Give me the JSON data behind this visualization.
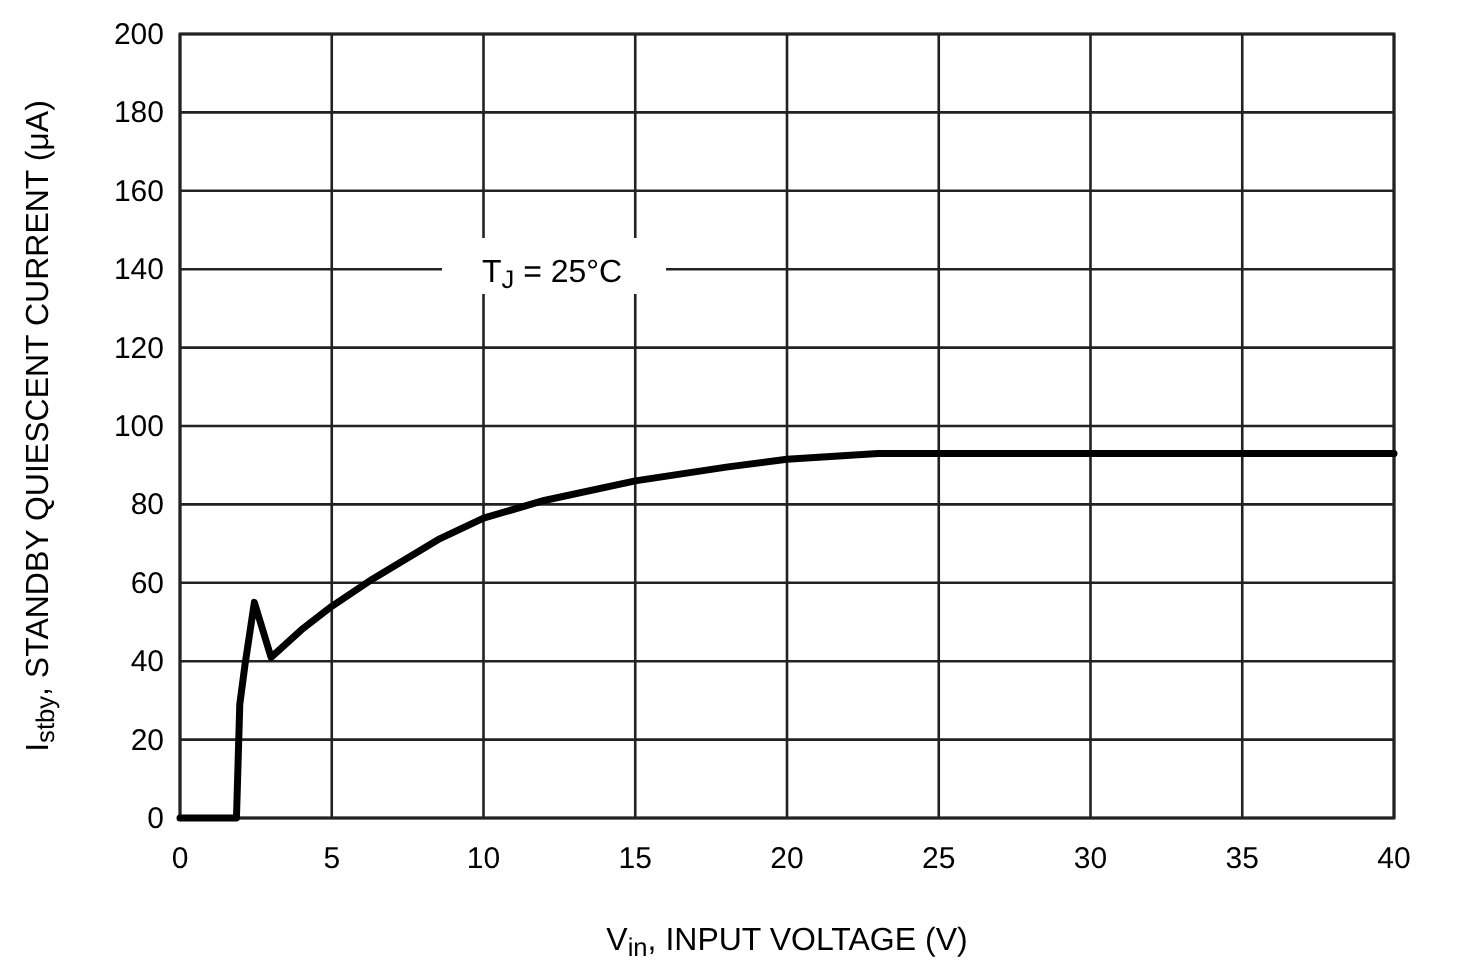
{
  "chart_data": {
    "type": "line",
    "x": [
      0,
      1.86,
      1.97,
      2.14,
      2.45,
      3.0,
      4.0,
      5.0,
      6.35,
      8.5,
      10,
      12,
      15,
      18,
      20,
      23,
      30,
      40
    ],
    "series": [
      {
        "color": "#000000",
        "values": [
          0,
          0,
          29,
          39,
          55,
          41,
          48,
          54,
          61,
          71,
          76.5,
          81,
          86,
          89.5,
          91.5,
          93,
          93,
          93
        ]
      }
    ],
    "xlabel": "V$_{in}$, INPUT VOLTAGE (V)",
    "ylabel": "I$_{stby}$, STANDBY QUIESCENT CURRENT (μA)",
    "annotations": [
      "T$_{J}$ = 25°C"
    ],
    "xlim": [
      0,
      40
    ],
    "ylim": [
      0,
      200
    ],
    "xticks": [
      0,
      5,
      10,
      15,
      20,
      25,
      30,
      35,
      40
    ],
    "yticks": [
      0,
      20,
      40,
      60,
      80,
      100,
      120,
      140,
      160,
      180,
      200
    ],
    "grid": true
  }
}
